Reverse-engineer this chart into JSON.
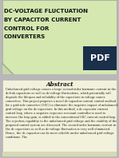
{
  "title_lines": [
    "DC-VOLTAGE FLUCTUATION",
    "BY CAPACITOR CURRENT",
    "CONTROL FOR",
    "CONVERTERS"
  ],
  "title_bg_color": "#d4e8b0",
  "title_text_color": "#111111",
  "pdf_badge_color": "#1a2f4a",
  "pdf_badge_text": "PDF",
  "abstract_title": "Abstract",
  "abstract_bg_color": "#f2f2dc",
  "abstract_text": "Unbalanced grid voltage causes a large second-order harmonic current in the dc-link capacitors as well as dc-voltage fluctuations, which potentially will degrade the lifespan and reliability of the capacitors in voltage source converters. This project proposes a novel dc-capacitor current control method for a grid-side converter (GSC) to eliminate the negative impact of unbalanced grid voltage on the dc-capacitors. In this method, a dc capacitor current control loop, where a negative sequence resonant controller is used to increase the loop gain, is added to the conventional GSC current control loop. The rejection capability to the unbalanced grid voltage and the stability of the proposed control system are discussed. The second-order harmonic current in the dc capacitors as well as dc-voltage fluctuation is very well eliminated. Hence, the dc capacitor can be more reliable under unbalanced grid voltage conditions. The",
  "background_color": "#b8b8b8",
  "corner_fold_color": "#a8b890",
  "gap_color": "#b8b8b8"
}
